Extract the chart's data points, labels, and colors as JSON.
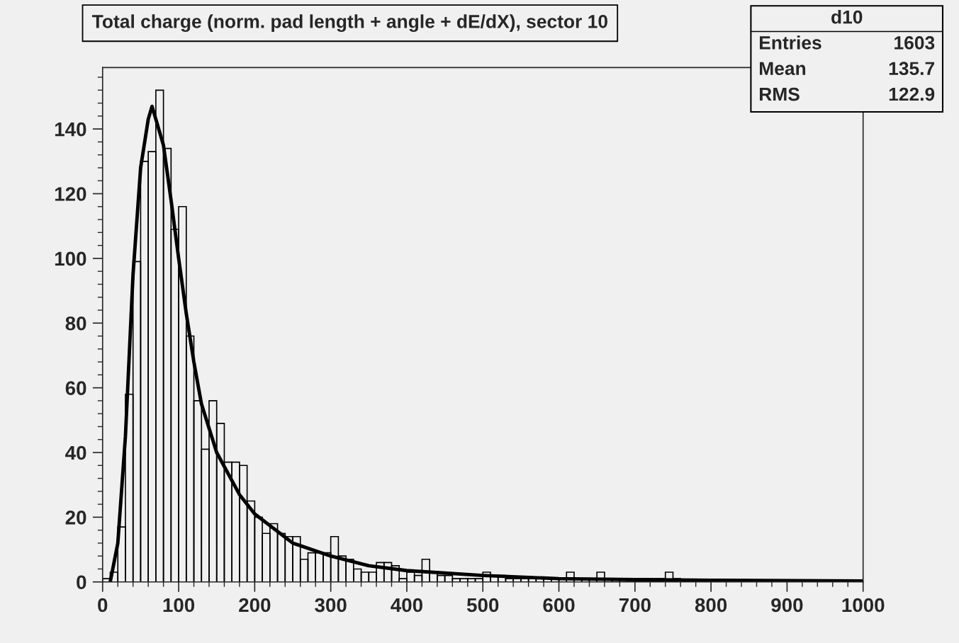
{
  "chart_data": {
    "type": "histogram",
    "title": "Total charge (norm. pad length + angle + dE/dX), sector 10",
    "bins": [
      0,
      10,
      20,
      30,
      40,
      50,
      60,
      70,
      80,
      90,
      100,
      110,
      120,
      130,
      140,
      150,
      160,
      170,
      180,
      190,
      200,
      210,
      220,
      230,
      240,
      250,
      260,
      270,
      280,
      290,
      300,
      310,
      320,
      330,
      340,
      350,
      360,
      370,
      380,
      390,
      400,
      410,
      420,
      430,
      440,
      450,
      460,
      470,
      480,
      490,
      500,
      510,
      520,
      530,
      540,
      550,
      560,
      570,
      580,
      590,
      600,
      610,
      620,
      630,
      640,
      650,
      660,
      670,
      680,
      690,
      700,
      710,
      720,
      730,
      740,
      750,
      760,
      770,
      780,
      790,
      800,
      810,
      820,
      830,
      840,
      850,
      860,
      870,
      880,
      890,
      900,
      910,
      920,
      930,
      940,
      950,
      960,
      970,
      980,
      990,
      1000
    ],
    "values": [
      1,
      3,
      17,
      58,
      99,
      130,
      133,
      152,
      134,
      109,
      116,
      76,
      56,
      41,
      56,
      49,
      37,
      37,
      36,
      25,
      20,
      15,
      18,
      15,
      14,
      14,
      7,
      9,
      9,
      9,
      14,
      8,
      7,
      4,
      3,
      3,
      6,
      6,
      5,
      1,
      3,
      2,
      7,
      3,
      2,
      2,
      1,
      1,
      1,
      1,
      3,
      2,
      2,
      1,
      1,
      1,
      1,
      1,
      1,
      1,
      1,
      3,
      1,
      1,
      1,
      3,
      1,
      1,
      1,
      0,
      1,
      1,
      1,
      1,
      3,
      1,
      0,
      0,
      0,
      0,
      0,
      0,
      0,
      0,
      0,
      0,
      0,
      0,
      0,
      0,
      0,
      0,
      0,
      0,
      0,
      0,
      0,
      0,
      0,
      0
    ],
    "color": "#000000",
    "series": [
      {
        "type": "line",
        "color": "#000000",
        "x": [
          10,
          20,
          30,
          40,
          50,
          60,
          65,
          70,
          80,
          90,
          100,
          110,
          120,
          130,
          150,
          180,
          200,
          250,
          300,
          350,
          400,
          500,
          600,
          700,
          800,
          1000
        ],
        "values": [
          0,
          12,
          45,
          95,
          128,
          143,
          147,
          143,
          135,
          118,
          100,
          83,
          68,
          55,
          40,
          27,
          21,
          12,
          8,
          5,
          3.5,
          2,
          1,
          0.7,
          0.5,
          0.3
        ]
      }
    ],
    "xlim": [
      0,
      1000
    ],
    "ylim": [
      0,
      159
    ],
    "xticks": [
      0,
      100,
      200,
      300,
      400,
      500,
      600,
      700,
      800,
      900,
      1000
    ],
    "yticks": [
      0,
      20,
      40,
      60,
      80,
      100,
      120,
      140
    ],
    "annotations": [
      "d10",
      "Entries 1603",
      "Mean 135.7",
      "RMS 122.9"
    ]
  }
}
